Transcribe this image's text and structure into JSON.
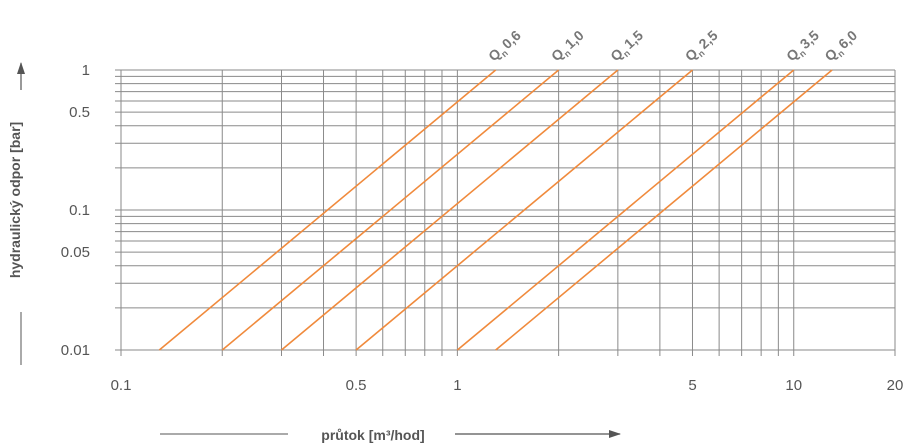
{
  "chart_data": {
    "type": "line",
    "title": "",
    "xlabel": "průtok [m³/hod]",
    "ylabel": "hydraulický odpor [bar]",
    "x_scale": "log",
    "y_scale": "log",
    "xlim": [
      0.1,
      20
    ],
    "ylim": [
      0.01,
      1
    ],
    "x_ticks": [
      0.1,
      0.5,
      1,
      5,
      10,
      20
    ],
    "x_tick_labels": [
      "0.1",
      "0.5",
      "1",
      "5",
      "10",
      "20"
    ],
    "y_ticks": [
      0.01,
      0.05,
      0.1,
      0.5,
      1
    ],
    "y_tick_labels": [
      "0.01",
      "0.05",
      "0.1",
      "0.5",
      "1"
    ],
    "grid": true,
    "line_color": "#F08A3C",
    "grid_color": "#8a8a8a",
    "series": [
      {
        "name": "Qn 0,6",
        "label_q": "Q",
        "label_sub": "n",
        "label_val": "0,6",
        "x": [
          0.13,
          1.3
        ],
        "y": [
          0.01,
          1
        ]
      },
      {
        "name": "Qn 1,0",
        "label_q": "Q",
        "label_sub": "n",
        "label_val": "1,0",
        "x": [
          0.2,
          2.0
        ],
        "y": [
          0.01,
          1
        ]
      },
      {
        "name": "Qn 1,5",
        "label_q": "Q",
        "label_sub": "n",
        "label_val": "1,5",
        "x": [
          0.3,
          3.0
        ],
        "y": [
          0.01,
          1
        ]
      },
      {
        "name": "Qn 2,5",
        "label_q": "Q",
        "label_sub": "n",
        "label_val": "2,5",
        "x": [
          0.5,
          5.0
        ],
        "y": [
          0.01,
          1
        ]
      },
      {
        "name": "Qn 3,5",
        "label_q": "Q",
        "label_sub": "n",
        "label_val": "3,5",
        "x": [
          1.0,
          10.0
        ],
        "y": [
          0.01,
          1
        ]
      },
      {
        "name": "Qn 6,0",
        "label_q": "Q",
        "label_sub": "n",
        "label_val": "6,0",
        "x": [
          1.3,
          13.0
        ],
        "y": [
          0.01,
          1
        ]
      }
    ]
  }
}
